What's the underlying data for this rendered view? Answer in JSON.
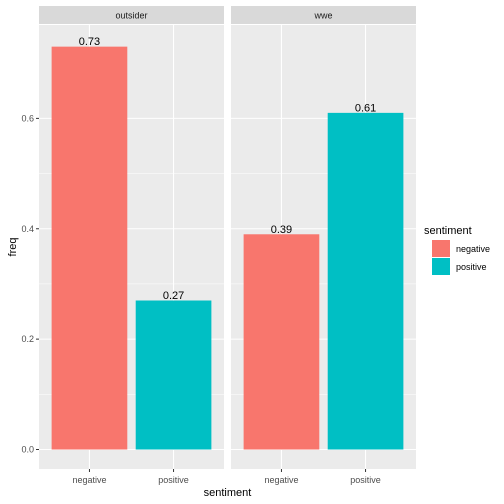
{
  "chart_data": {
    "type": "bar",
    "facets": [
      {
        "name": "outsider",
        "categories": [
          "negative",
          "positive"
        ],
        "values": [
          0.73,
          0.27
        ],
        "labels": [
          "0.73",
          "0.27"
        ]
      },
      {
        "name": "wwe",
        "categories": [
          "negative",
          "positive"
        ],
        "values": [
          0.39,
          0.61
        ],
        "labels": [
          "0.39",
          "0.61"
        ]
      }
    ],
    "xlabel": "sentiment",
    "ylabel": "freq",
    "ylim": [
      0,
      0.7665
    ],
    "yticks": [
      0.0,
      0.2,
      0.4,
      0.6
    ],
    "ytick_labels": [
      "0.0",
      "0.2",
      "0.4",
      "0.6"
    ],
    "grid": true,
    "legend": {
      "title": "sentiment",
      "position": "right",
      "entries": [
        {
          "label": "negative",
          "color": "#F8766D"
        },
        {
          "label": "positive",
          "color": "#00BFC4"
        }
      ]
    },
    "colors": {
      "negative": "#F8766D",
      "positive": "#00BFC4",
      "panel_bg": "#EBEBEB",
      "strip_bg": "#D9D9D9",
      "grid": "#FFFFFF"
    }
  }
}
